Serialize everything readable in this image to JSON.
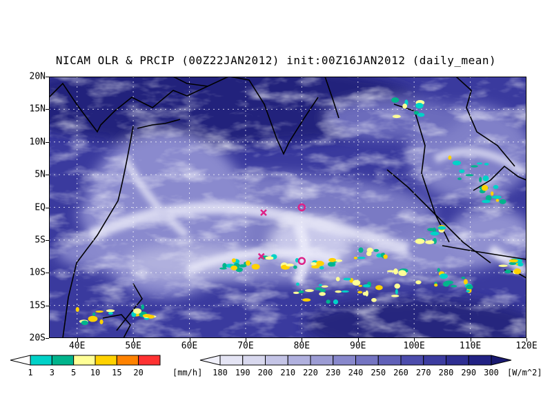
{
  "title": "NICAM OLR & PRCIP (00Z22JAN2012) init:00Z16JAN2012 (daily_mean)",
  "map": {
    "lat_labels": [
      "20N",
      "15N",
      "10N",
      "5N",
      "EQ",
      "5S",
      "10S",
      "15S",
      "20S"
    ],
    "lon_labels": [
      "40E",
      "50E",
      "60E",
      "70E",
      "80E",
      "90E",
      "100E",
      "110E",
      "120E"
    ],
    "extent": {
      "lon_min": 35,
      "lon_max": 120,
      "lat_min": -20,
      "lat_max": 20
    },
    "colors": {
      "olr_dark": "#1e1e78",
      "olr_mid": "#5a5ab4",
      "olr_light": "#d8d8ee",
      "land_line": "#000000",
      "grid": "#ffffff"
    },
    "markers": [
      {
        "symbol": "x",
        "lon": 73.2,
        "lat": -0.8,
        "color": "#dd2288"
      },
      {
        "symbol": "x",
        "lon": 72.8,
        "lat": -7.5,
        "color": "#dd2288"
      },
      {
        "symbol": "circle",
        "lon": 80.0,
        "lat": 0.0,
        "color": "#dd2288"
      },
      {
        "symbol": "circle",
        "lon": 80.0,
        "lat": -8.2,
        "color": "#dd2288"
      }
    ]
  },
  "precip_colorbar": {
    "labels": [
      "1",
      "3",
      "5",
      "10",
      "15",
      "20"
    ],
    "unit": "[mm/h]",
    "colors": [
      "#00d2c8",
      "#00b48c",
      "#ffff96",
      "#ffd200",
      "#ff8200",
      "#ff3232"
    ]
  },
  "olr_colorbar": {
    "labels": [
      "180",
      "190",
      "200",
      "210",
      "220",
      "230",
      "240",
      "250",
      "260",
      "270",
      "280",
      "290",
      "300"
    ],
    "unit": "[W/m^2]",
    "colors": [
      "#f0f0fa",
      "#e4e4f4",
      "#d8d8ee",
      "#c4c4e6",
      "#b0b0de",
      "#9c9cd4",
      "#8888cc",
      "#7474c2",
      "#6060b8",
      "#4c4cac",
      "#3c3ca0",
      "#2e2e92",
      "#222284",
      "#1a1a70"
    ]
  }
}
